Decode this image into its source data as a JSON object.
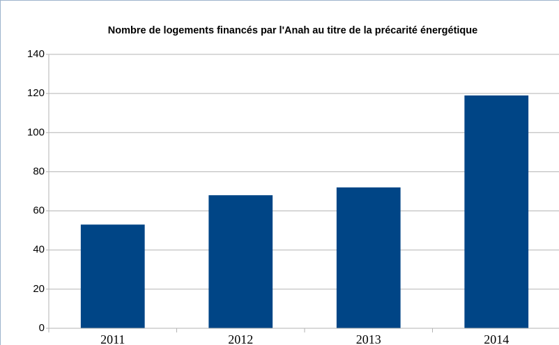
{
  "chart_data": {
    "type": "bar",
    "title": "Nombre de logements financés par l'Anah au titre de la précarité énergétique",
    "categories": [
      "2011",
      "2012",
      "2013",
      "2014"
    ],
    "values": [
      53,
      68,
      72,
      119
    ],
    "color": "#004586",
    "ylim": [
      0,
      140
    ],
    "yticks": [
      0,
      20,
      40,
      60,
      80,
      100,
      120,
      140
    ],
    "grid": true
  }
}
